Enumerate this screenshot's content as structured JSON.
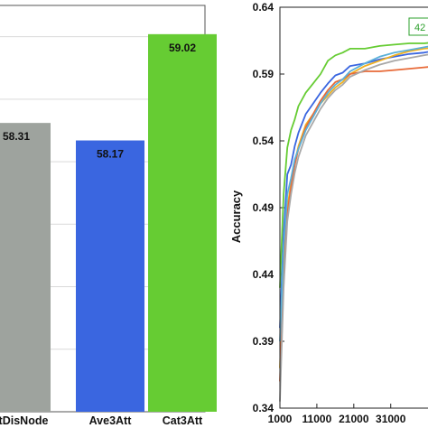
{
  "chart_data": [
    {
      "type": "bar",
      "categories": [
        "CatDisNode",
        "Ave3Att",
        "Cat3Att"
      ],
      "values": [
        58.31,
        58.17,
        59.02
      ],
      "value_labels": [
        "58.31",
        "58.17",
        "59.02"
      ],
      "colors": [
        "#9ea39e",
        "#3a66e0",
        "#66cc33"
      ],
      "ylim": [
        56.0,
        59.25
      ],
      "grid": true,
      "title": "",
      "xlabel": "",
      "ylabel": ""
    },
    {
      "type": "line",
      "ylabel": "Accuracy",
      "xlabel": "",
      "xlim": [
        1000,
        45000
      ],
      "ylim": [
        0.34,
        0.64
      ],
      "x_ticks": [
        1000,
        11000,
        21000,
        31000
      ],
      "x_tick_labels": [
        "1000",
        "11000",
        "21000",
        "31000"
      ],
      "y_ticks": [
        0.34,
        0.39,
        0.44,
        0.49,
        0.54,
        0.59,
        0.64
      ],
      "y_tick_labels": [
        "0.34",
        "0.39",
        "0.44",
        "0.49",
        "0.54",
        "0.59",
        "0.64"
      ],
      "annotation": "42",
      "series": [
        {
          "color": "#66cc33",
          "x": [
            1000,
            2000,
            3000,
            4000,
            5000,
            6000,
            8000,
            10000,
            12000,
            14000,
            16000,
            18000,
            20000,
            24000,
            28000,
            32000,
            36000,
            40000,
            44000
          ],
          "y": [
            0.43,
            0.5,
            0.535,
            0.548,
            0.556,
            0.566,
            0.576,
            0.583,
            0.59,
            0.6,
            0.604,
            0.606,
            0.609,
            0.609,
            0.611,
            0.612,
            0.613,
            0.613,
            0.614
          ]
        },
        {
          "color": "#3a66e0",
          "x": [
            1000,
            2000,
            3000,
            4000,
            5000,
            6000,
            8000,
            10000,
            12000,
            14000,
            16000,
            18000,
            20000,
            24000,
            28000,
            32000,
            36000,
            40000,
            44000
          ],
          "y": [
            0.4,
            0.47,
            0.515,
            0.522,
            0.536,
            0.546,
            0.56,
            0.568,
            0.576,
            0.583,
            0.589,
            0.591,
            0.596,
            0.598,
            0.601,
            0.603,
            0.605,
            0.606,
            0.608
          ]
        },
        {
          "color": "#f0b020",
          "x": [
            1000,
            2000,
            3000,
            4000,
            5000,
            6000,
            8000,
            10000,
            12000,
            14000,
            16000,
            18000,
            20000,
            24000,
            28000,
            32000,
            36000,
            40000,
            44000
          ],
          "y": [
            0.37,
            0.45,
            0.49,
            0.508,
            0.524,
            0.536,
            0.552,
            0.56,
            0.568,
            0.574,
            0.58,
            0.584,
            0.59,
            0.596,
            0.6,
            0.604,
            0.607,
            0.609,
            0.61
          ]
        },
        {
          "color": "#e86a38",
          "x": [
            1000,
            2000,
            3000,
            4000,
            5000,
            6000,
            8000,
            10000,
            12000,
            14000,
            16000,
            18000,
            20000,
            24000,
            28000,
            32000,
            36000,
            40000,
            44000
          ],
          "y": [
            0.36,
            0.44,
            0.485,
            0.505,
            0.522,
            0.534,
            0.55,
            0.56,
            0.57,
            0.578,
            0.584,
            0.586,
            0.59,
            0.592,
            0.592,
            0.593,
            0.594,
            0.595,
            0.596
          ]
        },
        {
          "color": "#5ab0d8",
          "x": [
            1000,
            2000,
            3000,
            4000,
            5000,
            6000,
            8000,
            10000,
            12000,
            14000,
            16000,
            18000,
            20000,
            24000,
            28000,
            32000,
            36000,
            40000,
            44000
          ],
          "y": [
            0.39,
            0.46,
            0.5,
            0.512,
            0.526,
            0.534,
            0.548,
            0.558,
            0.568,
            0.576,
            0.582,
            0.586,
            0.592,
            0.598,
            0.603,
            0.606,
            0.608,
            0.61,
            0.612
          ]
        },
        {
          "color": "#a8a8a8",
          "x": [
            1000,
            2000,
            3000,
            4000,
            5000,
            6000,
            8000,
            10000,
            12000,
            14000,
            16000,
            18000,
            20000,
            24000,
            28000,
            32000,
            36000,
            40000,
            44000
          ],
          "y": [
            0.345,
            0.43,
            0.48,
            0.5,
            0.516,
            0.528,
            0.544,
            0.554,
            0.564,
            0.572,
            0.578,
            0.582,
            0.588,
            0.593,
            0.597,
            0.6,
            0.602,
            0.604,
            0.606
          ]
        }
      ]
    }
  ]
}
